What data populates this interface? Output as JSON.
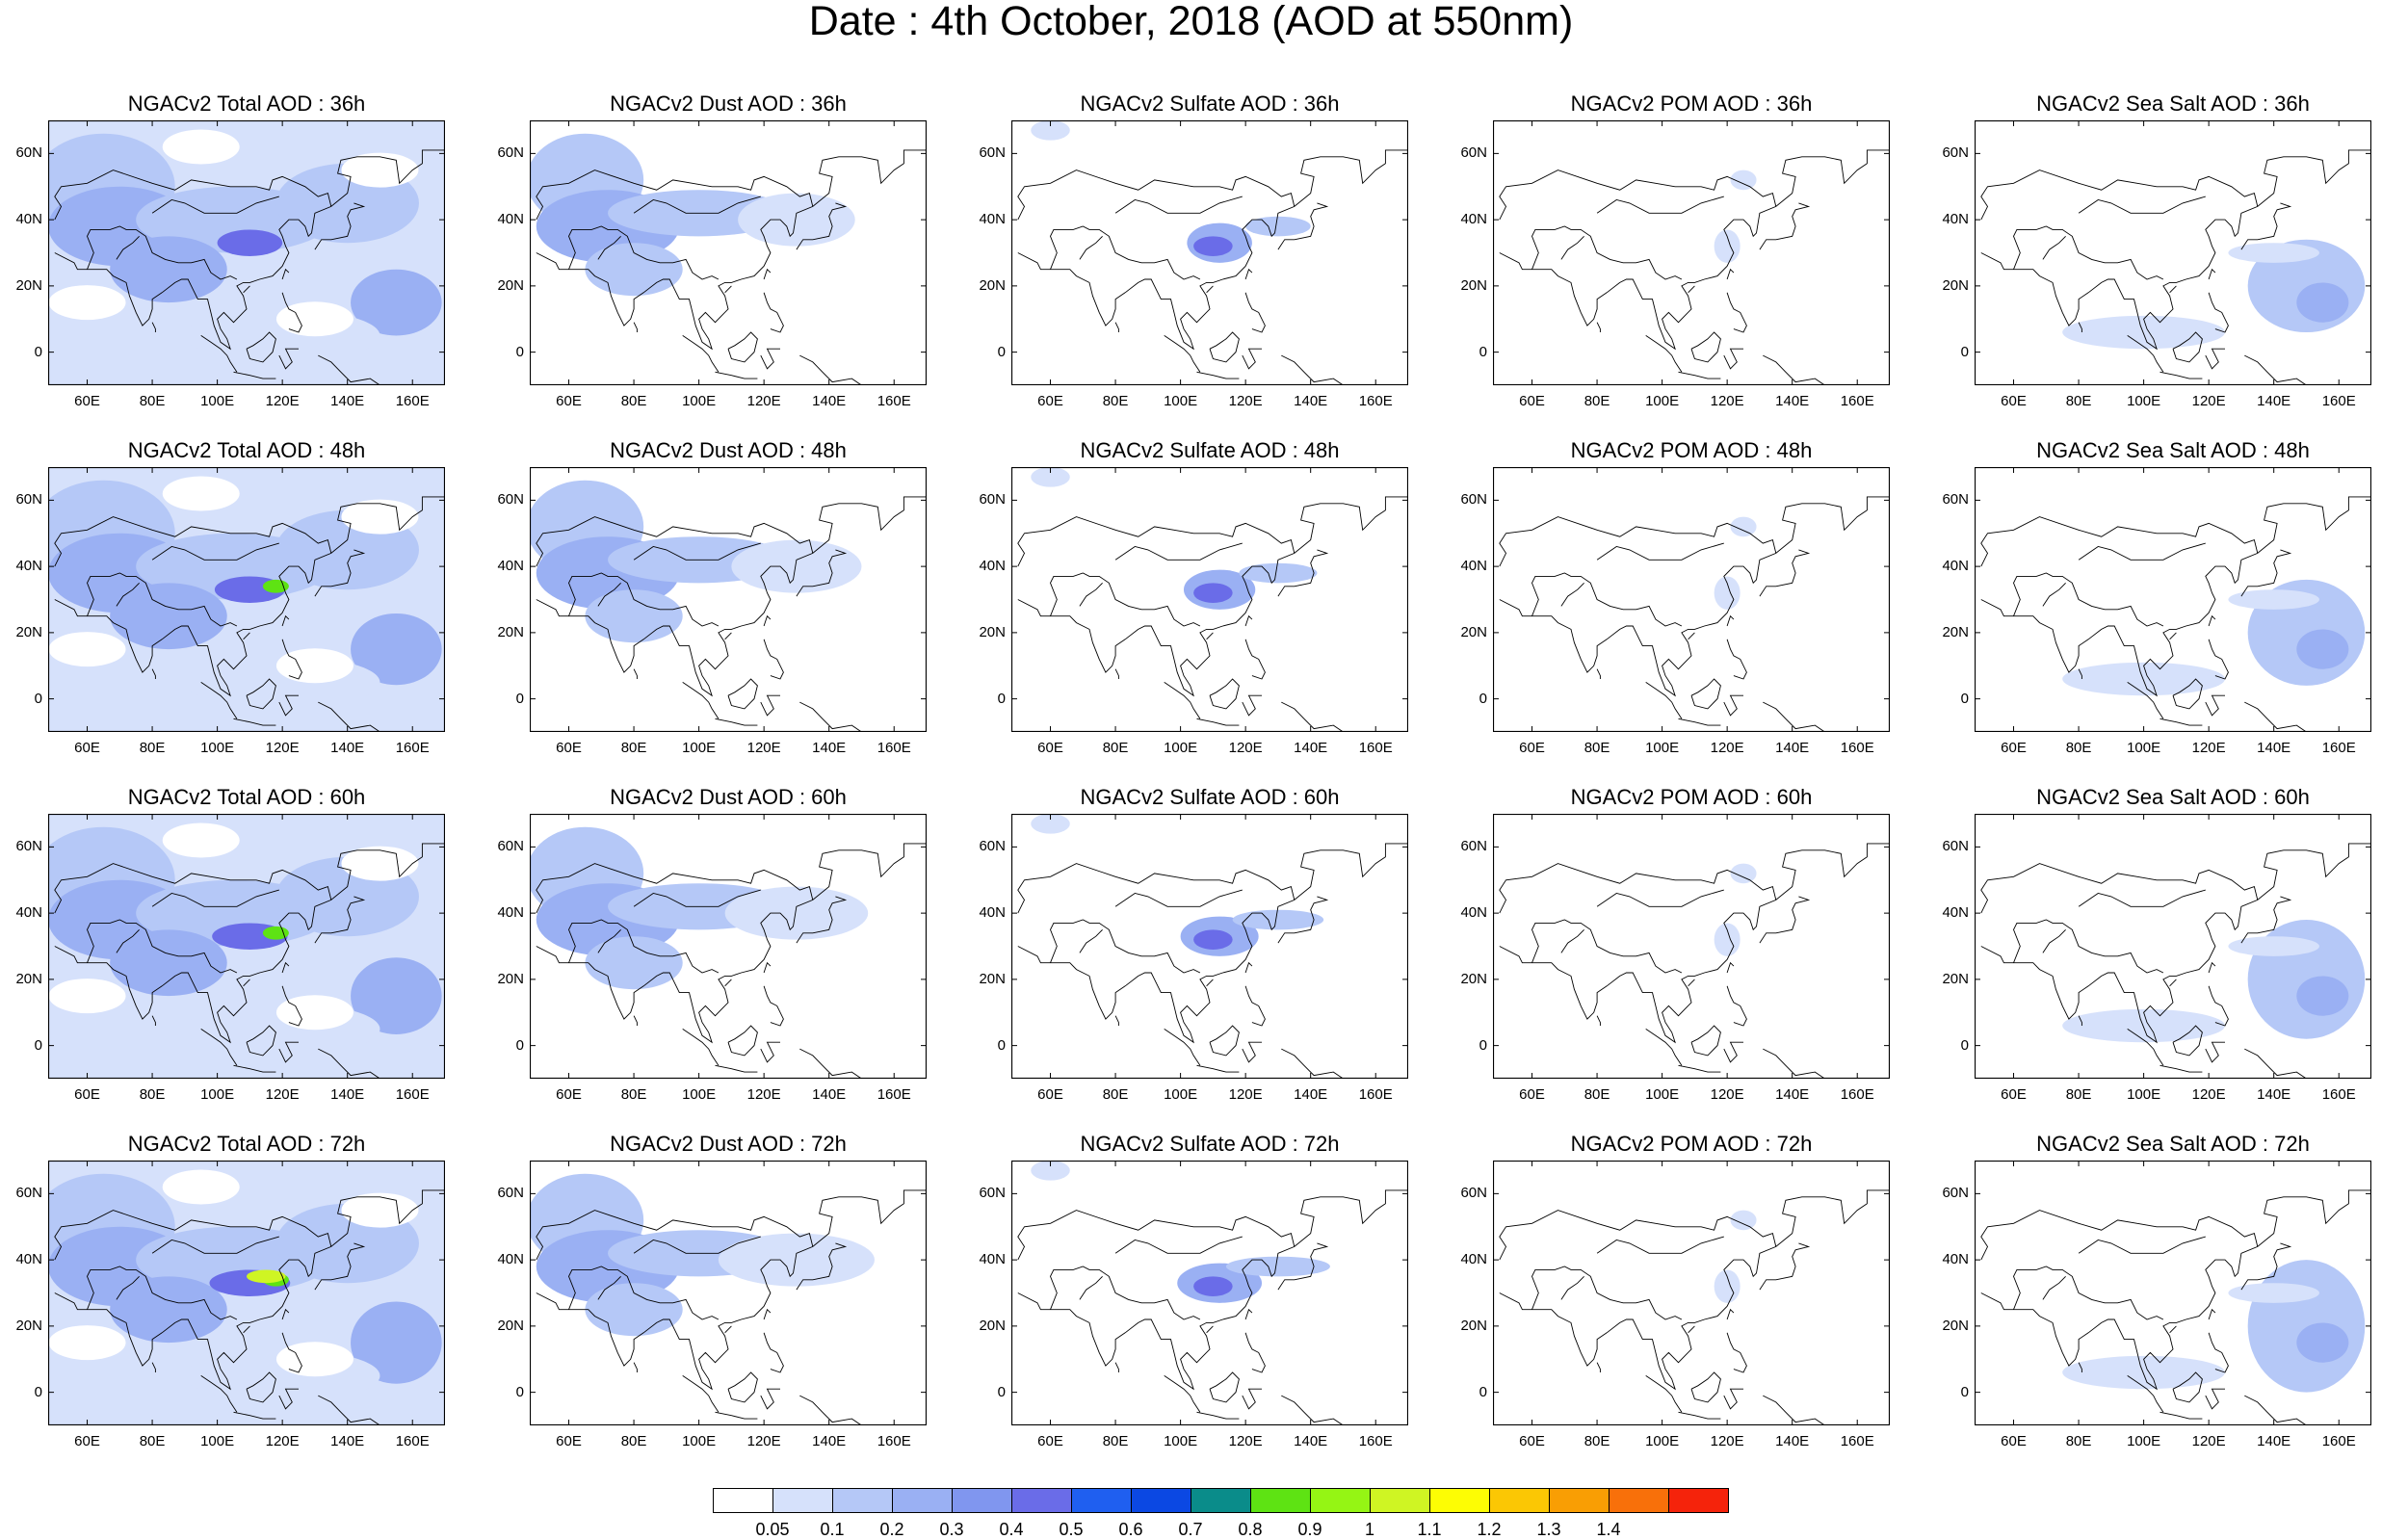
{
  "title": "Date : 4th October, 2018 (AOD at 550nm)",
  "columns": [
    "NGACv2 Total AOD",
    "NGACv2 Dust AOD",
    "NGACv2 Sulfate AOD",
    "NGACv2 POM AOD",
    "NGACv2 Sea Salt AOD"
  ],
  "panel_titles": [
    [
      "NGACv2 Total AOD : 36h",
      "NGACv2 Dust AOD : 36h",
      "NGACv2 Sulfate AOD : 36h",
      "NGACv2 POM AOD : 36h",
      "NGACv2 Sea Salt AOD : 36h"
    ],
    [
      "NGACv2 Total AOD : 48h",
      "NGACv2 Dust AOD : 48h",
      "NGACv2 Sulfate AOD : 48h",
      "NGACv2 POM AOD : 48h",
      "NGACv2 Sea Salt AOD : 48h"
    ],
    [
      "NGACv2 Total AOD : 60h",
      "NGACv2 Dust AOD : 60h",
      "NGACv2 Sulfate AOD : 60h",
      "NGACv2 POM AOD : 60h",
      "NGACv2 Sea Salt AOD : 60h"
    ],
    [
      "NGACv2 Total AOD : 72h",
      "NGACv2 Dust AOD : 72h",
      "NGACv2 Sulfate AOD : 72h",
      "NGACv2 POM AOD : 72h",
      "NGACv2 Sea Salt  AOD : 72h"
    ]
  ],
  "lat_labels": [
    "60N",
    "40N",
    "20N",
    "0"
  ],
  "lon_labels": [
    "60E",
    "80E",
    "100E",
    "120E",
    "140E",
    "160E"
  ],
  "colorbar": {
    "labels": [
      "0.05",
      "0.1",
      "0.2",
      "0.3",
      "0.4",
      "0.5",
      "0.6",
      "0.7",
      "0.8",
      "0.9",
      "1",
      "1.1",
      "1.2",
      "1.3",
      "1.4"
    ],
    "colors": [
      "#ffffff",
      "#d6e1fb",
      "#b5c8f7",
      "#9ab0f3",
      "#8096ef",
      "#6a6ce8",
      "#1f5ff0",
      "#0b48e3",
      "#0a8c8a",
      "#5ee313",
      "#95f514",
      "#cff523",
      "#fdfd04",
      "#fbc704",
      "#f99e04",
      "#f8700a",
      "#f5230b"
    ]
  }
}
